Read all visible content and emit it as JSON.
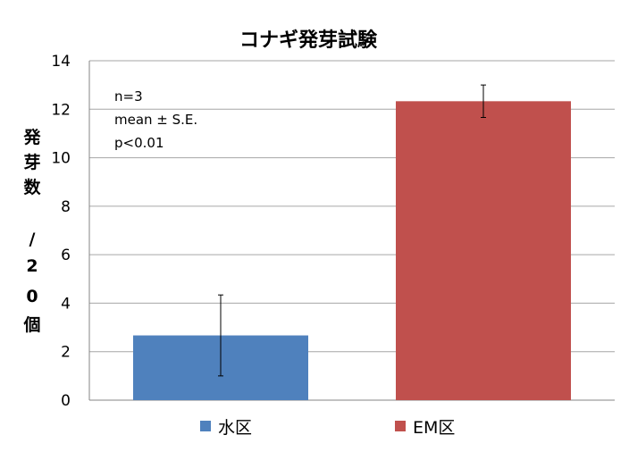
{
  "chart_data": {
    "type": "bar",
    "title": "コナギ発芽試験",
    "ylabel_chars": [
      "発",
      "芽",
      "数",
      "/",
      "2",
      "0",
      "個"
    ],
    "categories": [
      "水区",
      "EM区"
    ],
    "values": [
      2.67,
      12.33
    ],
    "errors": [
      1.67,
      0.67
    ],
    "colors": [
      "#4f81bd",
      "#c0504d"
    ],
    "ylim": [
      0,
      14
    ],
    "yticks": [
      "0",
      "2",
      "4",
      "6",
      "8",
      "10",
      "12",
      "14"
    ],
    "grid": true,
    "legend_position": "bottom",
    "annotations": [
      "n=3",
      "mean ± S.E.",
      "p<0.01"
    ]
  }
}
